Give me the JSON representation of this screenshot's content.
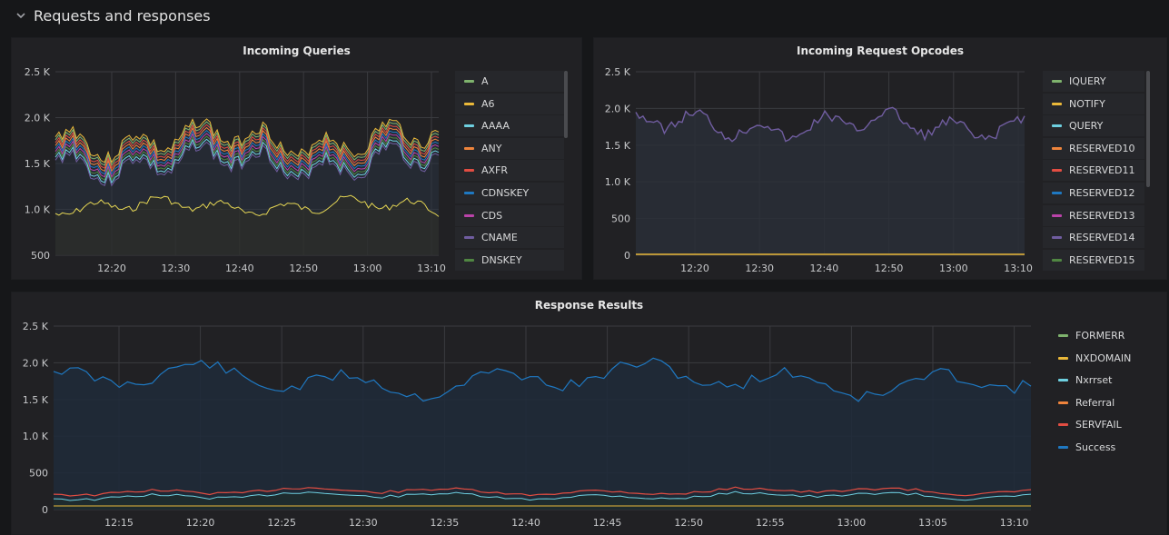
{
  "row": {
    "title": "Requests and responses",
    "icon": "chevron-down-icon"
  },
  "colors": {
    "green": "#7eb26d",
    "yellow": "#eab839",
    "cyan": "#6ed0e0",
    "orange": "#ef843c",
    "red": "#e24d42",
    "blue": "#1f78c1",
    "pink": "#ba43a9",
    "purple": "#705da0",
    "darkgreen": "#508642"
  },
  "panels": {
    "queries": {
      "title": "Incoming Queries",
      "y_ticks": [
        "2.5 K",
        "2.0 K",
        "1.5 K",
        "1.0 K",
        "500"
      ],
      "x_ticks": [
        "12:20",
        "12:30",
        "12:40",
        "12:50",
        "13:00",
        "13:10"
      ],
      "legend": [
        {
          "label": "A",
          "color": "#7eb26d"
        },
        {
          "label": "A6",
          "color": "#eab839"
        },
        {
          "label": "AAAA",
          "color": "#6ed0e0"
        },
        {
          "label": "ANY",
          "color": "#ef843c"
        },
        {
          "label": "AXFR",
          "color": "#e24d42"
        },
        {
          "label": "CDNSKEY",
          "color": "#1f78c1"
        },
        {
          "label": "CDS",
          "color": "#ba43a9"
        },
        {
          "label": "CNAME",
          "color": "#705da0"
        },
        {
          "label": "DNSKEY",
          "color": "#508642"
        }
      ]
    },
    "opcodes": {
      "title": "Incoming Request Opcodes",
      "y_ticks": [
        "2.5 K",
        "2.0 K",
        "1.5 K",
        "1.0 K",
        "500",
        "0"
      ],
      "x_ticks": [
        "12:20",
        "12:30",
        "12:40",
        "12:50",
        "13:00",
        "13:10"
      ],
      "legend": [
        {
          "label": "IQUERY",
          "color": "#7eb26d"
        },
        {
          "label": "NOTIFY",
          "color": "#eab839"
        },
        {
          "label": "QUERY",
          "color": "#6ed0e0"
        },
        {
          "label": "RESERVED10",
          "color": "#ef843c"
        },
        {
          "label": "RESERVED11",
          "color": "#e24d42"
        },
        {
          "label": "RESERVED12",
          "color": "#1f78c1"
        },
        {
          "label": "RESERVED13",
          "color": "#ba43a9"
        },
        {
          "label": "RESERVED14",
          "color": "#705da0"
        },
        {
          "label": "RESERVED15",
          "color": "#508642"
        }
      ]
    },
    "responses": {
      "title": "Response Results",
      "y_ticks": [
        "2.5 K",
        "2.0 K",
        "1.5 K",
        "1.0 K",
        "500",
        "0"
      ],
      "x_ticks": [
        "12:15",
        "12:20",
        "12:25",
        "12:30",
        "12:35",
        "12:40",
        "12:45",
        "12:50",
        "12:55",
        "13:00",
        "13:05",
        "13:10"
      ],
      "legend": [
        {
          "label": "FORMERR",
          "color": "#7eb26d"
        },
        {
          "label": "NXDOMAIN",
          "color": "#eab839"
        },
        {
          "label": "Nxrrset",
          "color": "#6ed0e0"
        },
        {
          "label": "Referral",
          "color": "#ef843c"
        },
        {
          "label": "SERVFAIL",
          "color": "#e24d42"
        },
        {
          "label": "Success",
          "color": "#1f78c1"
        }
      ]
    }
  }
}
